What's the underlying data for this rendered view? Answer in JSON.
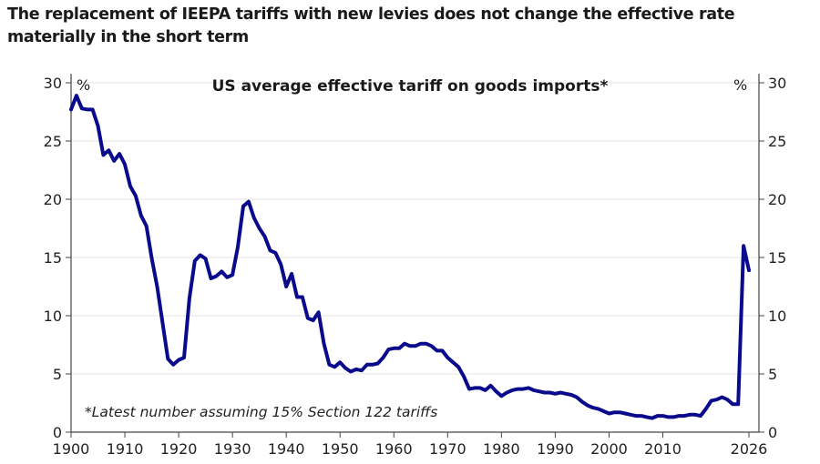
{
  "headline": "The replacement of IEEPA tariffs with new levies does not change the effective rate materially in the short term",
  "chart_data": {
    "type": "line",
    "title": "US average effective tariff on goods imports*",
    "xlabel": "",
    "ylabel": "%",
    "y_unit_left": "%",
    "y_unit_right": "%",
    "annotation": "*Latest number assuming 15% Section 122 tariffs",
    "xlim": [
      1900,
      2026
    ],
    "ylim": [
      0,
      30
    ],
    "x_ticks": [
      1900,
      1910,
      1920,
      1930,
      1940,
      1950,
      1960,
      1970,
      1980,
      1990,
      2000,
      2010,
      2026
    ],
    "x_tick_labels": [
      "1900",
      "1910",
      "1920",
      "1930",
      "1940",
      "1950",
      "1960",
      "1970",
      "1980",
      "1990",
      "2000",
      "2010",
      "2026"
    ],
    "y_ticks": [
      0,
      5,
      10,
      15,
      20,
      25,
      30
    ],
    "y_tick_labels": [
      "0",
      "5",
      "10",
      "15",
      "20",
      "25",
      "30"
    ],
    "grid": "horizontal",
    "line_color": "#0a0a8c",
    "series": [
      {
        "name": "US average effective tariff on goods imports",
        "x": [
          1900,
          1901,
          1902,
          1903,
          1904,
          1905,
          1906,
          1907,
          1908,
          1909,
          1910,
          1911,
          1912,
          1913,
          1914,
          1915,
          1916,
          1917,
          1918,
          1919,
          1920,
          1921,
          1922,
          1923,
          1924,
          1925,
          1926,
          1927,
          1928,
          1929,
          1930,
          1931,
          1932,
          1933,
          1934,
          1935,
          1936,
          1937,
          1938,
          1939,
          1940,
          1941,
          1942,
          1943,
          1944,
          1945,
          1946,
          1947,
          1948,
          1949,
          1950,
          1951,
          1952,
          1953,
          1954,
          1955,
          1956,
          1957,
          1958,
          1959,
          1960,
          1961,
          1962,
          1963,
          1964,
          1965,
          1966,
          1967,
          1968,
          1969,
          1970,
          1971,
          1972,
          1973,
          1974,
          1975,
          1976,
          1977,
          1978,
          1979,
          1980,
          1981,
          1982,
          1983,
          1984,
          1985,
          1986,
          1987,
          1988,
          1989,
          1990,
          1991,
          1992,
          1993,
          1994,
          1995,
          1996,
          1997,
          1998,
          1999,
          2000,
          2001,
          2002,
          2003,
          2004,
          2005,
          2006,
          2007,
          2008,
          2009,
          2010,
          2011,
          2012,
          2013,
          2014,
          2015,
          2016,
          2017,
          2018,
          2019,
          2020,
          2021,
          2022,
          2023,
          2024,
          2025,
          2026
        ],
        "values": [
          27.7,
          28.9,
          27.8,
          27.7,
          27.7,
          26.3,
          23.8,
          24.2,
          23.3,
          23.9,
          23.0,
          21.1,
          20.3,
          18.6,
          17.7,
          14.9,
          12.5,
          9.4,
          6.3,
          5.8,
          6.2,
          6.4,
          11.5,
          14.7,
          15.2,
          14.9,
          13.2,
          13.4,
          13.8,
          13.3,
          13.5,
          15.9,
          19.4,
          19.8,
          18.4,
          17.5,
          16.8,
          15.6,
          15.4,
          14.4,
          12.5,
          13.6,
          11.6,
          11.6,
          9.8,
          9.6,
          10.3,
          7.6,
          5.8,
          5.6,
          6.0,
          5.5,
          5.2,
          5.4,
          5.3,
          5.8,
          5.8,
          5.9,
          6.4,
          7.1,
          7.2,
          7.2,
          7.6,
          7.4,
          7.4,
          7.6,
          7.6,
          7.4,
          7.0,
          7.0,
          6.4,
          6.0,
          5.6,
          4.8,
          3.7,
          3.8,
          3.8,
          3.6,
          4.0,
          3.5,
          3.1,
          3.4,
          3.6,
          3.7,
          3.7,
          3.8,
          3.6,
          3.5,
          3.4,
          3.4,
          3.3,
          3.4,
          3.3,
          3.2,
          3.0,
          2.6,
          2.3,
          2.1,
          2.0,
          1.8,
          1.6,
          1.7,
          1.7,
          1.6,
          1.5,
          1.4,
          1.4,
          1.3,
          1.2,
          1.4,
          1.4,
          1.3,
          1.3,
          1.4,
          1.4,
          1.5,
          1.5,
          1.4,
          2.0,
          2.7,
          2.8,
          3.0,
          2.8,
          2.4,
          2.4,
          16.0,
          13.9
        ]
      }
    ]
  }
}
